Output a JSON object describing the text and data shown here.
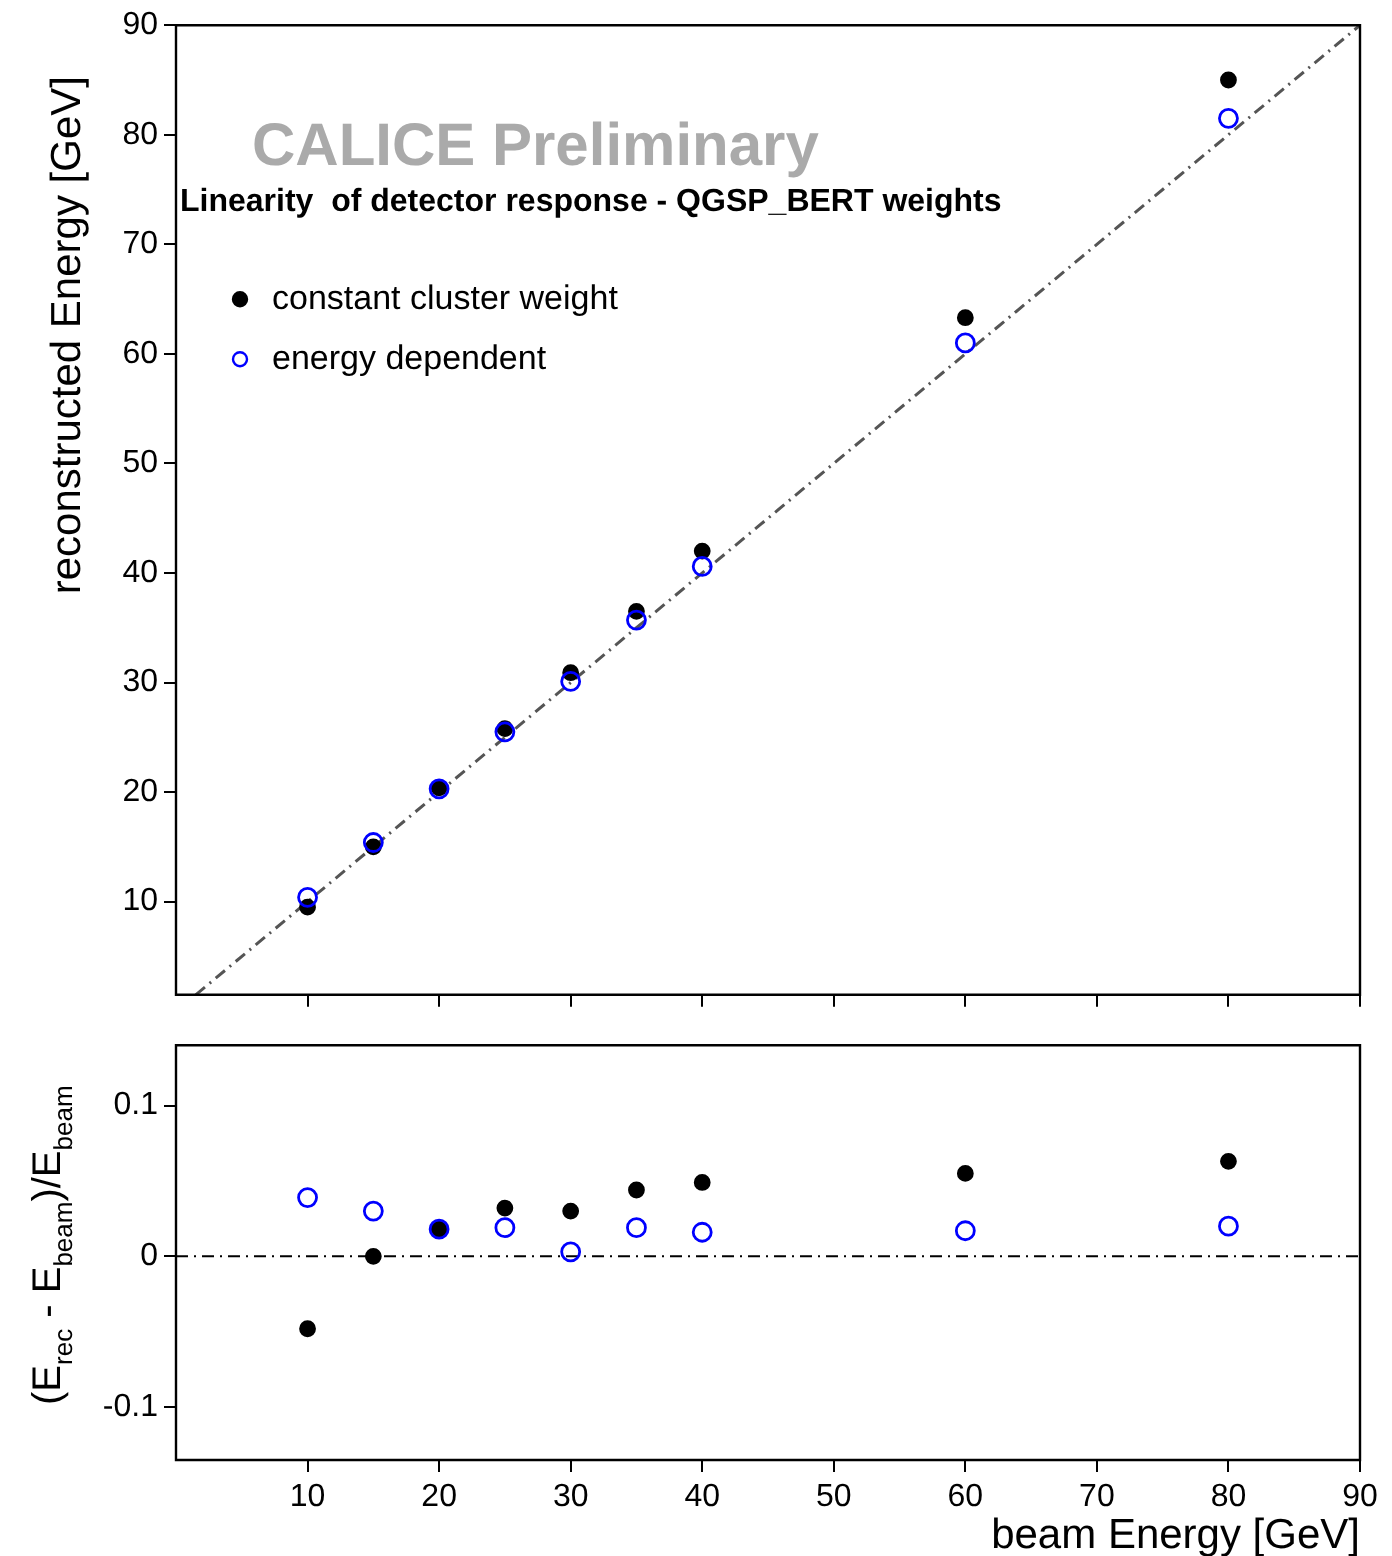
{
  "chart_data": [
    {
      "type": "scatter",
      "ylabel": "reconstructed Energy [GeV]",
      "annotations": [
        "CALICE Preliminary",
        "Linearity  of detector response - QGSP_BERT weights"
      ],
      "x": [
        10,
        15,
        20,
        25,
        30,
        35,
        40,
        60,
        80
      ],
      "series": [
        {
          "name": "constant cluster weight",
          "color": "#000000",
          "marker": "circle",
          "values": [
            9.5,
            15.0,
            20.4,
            25.8,
            30.9,
            36.5,
            42.0,
            63.3,
            85.0
          ]
        },
        {
          "name": "energy dependent",
          "color": "#0000ff",
          "marker": "circle-open",
          "values": [
            10.4,
            15.4,
            20.3,
            25.5,
            30.1,
            35.7,
            40.6,
            61.0,
            81.5
          ]
        },
        {
          "type": "line",
          "color": "#555555",
          "line_style": "dashed",
          "marker": "none",
          "x": [
            1.5,
            90
          ],
          "values": [
            1.5,
            90
          ]
        }
      ],
      "xlim": [
        0,
        90
      ],
      "xticks": [
        10,
        20,
        30,
        40,
        50,
        60,
        70,
        80,
        90
      ],
      "ylim": [
        1.5,
        90
      ],
      "yticks": [
        10,
        20,
        30,
        40,
        50,
        60,
        70,
        80,
        90
      ],
      "tick_labels": "y",
      "grid": false,
      "legend": "top left"
    },
    {
      "type": "scatter",
      "xlabel": "beam Energy [GeV]",
      "ylabel": "(E$_{rec}$ - E$_{beam}$)/E$_{beam}$",
      "x": [
        10,
        15,
        20,
        25,
        30,
        35,
        40,
        60,
        80
      ],
      "series": [
        {
          "color": "#000000",
          "marker": "circle",
          "values": [
            -0.048,
            0.0,
            0.018,
            0.032,
            0.03,
            0.044,
            0.049,
            0.055,
            0.063
          ]
        },
        {
          "color": "#0000ff",
          "marker": "circle-open",
          "values": [
            0.039,
            0.03,
            0.018,
            0.019,
            0.003,
            0.019,
            0.016,
            0.017,
            0.02
          ]
        }
      ],
      "ref_lines": [
        {
          "axis": "y",
          "value": 0,
          "color": "#000000",
          "line_style": "dashed"
        }
      ],
      "xlim": [
        0,
        90
      ],
      "xticks": [
        10,
        20,
        30,
        40,
        50,
        60,
        70,
        80,
        90
      ],
      "ylim": [
        -0.135,
        0.14
      ],
      "yticks": [
        {
          "value": -0.1,
          "label": "-0.1"
        },
        0,
        0.1
      ],
      "grid": false,
      "legend": false
    }
  ]
}
